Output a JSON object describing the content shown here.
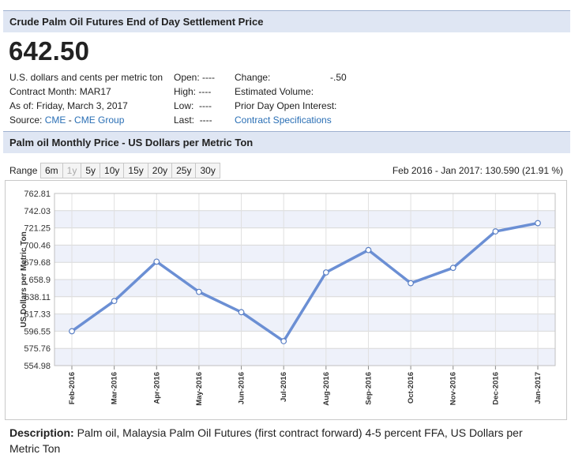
{
  "header": {
    "title": "Crude Palm Oil Futures End of Day Settlement Price"
  },
  "quote": {
    "price": "642.50",
    "unit": "U.S. dollars and cents per metric ton",
    "contract_label": "Contract Month: MAR17",
    "as_of": "As of: Friday, March 3, 2017",
    "source_label": "Source:",
    "source_cme": "CME",
    "source_sep": " - ",
    "source_group": "CME Group",
    "open_label": "Open:",
    "open_value": "----",
    "high_label": "High:",
    "high_value": "----",
    "low_label": "Low:",
    "low_value": "----",
    "last_label": "Last:",
    "last_value": "----",
    "change_label": "Change:",
    "change_value": "-.50",
    "volume_label": "Estimated Volume:",
    "open_interest_label": "Prior Day Open Interest:",
    "specs_link": "Contract Specifications"
  },
  "chart_section": {
    "title": "Palm oil Monthly Price - US Dollars per Metric Ton"
  },
  "range": {
    "label": "Range",
    "buttons": [
      {
        "label": "6m",
        "disabled": false
      },
      {
        "label": "1y",
        "disabled": true
      },
      {
        "label": "5y",
        "disabled": false
      },
      {
        "label": "10y",
        "disabled": false
      },
      {
        "label": "15y",
        "disabled": false
      },
      {
        "label": "20y",
        "disabled": false
      },
      {
        "label": "25y",
        "disabled": false
      },
      {
        "label": "30y",
        "disabled": false
      }
    ],
    "summary": "Feb 2016 - Jan 2017: 130.590 (21.91 %)"
  },
  "chart_data": {
    "type": "line",
    "ylabel": "US Dollars per Metric Ton",
    "ylim": [
      554.98,
      762.81
    ],
    "yticks": [
      "762.81",
      "742.03",
      "721.25",
      "700.46",
      "679.68",
      "658.9",
      "638.11",
      "617.33",
      "596.55",
      "575.76",
      "554.98"
    ],
    "categories": [
      "Feb-2016",
      "Mar-2016",
      "Apr-2016",
      "May-2016",
      "Jun-2016",
      "Jul-2016",
      "Aug-2016",
      "Sep-2016",
      "Oct-2016",
      "Nov-2016",
      "Dec-2016",
      "Jan-2017"
    ],
    "series": [
      {
        "values": [
          596.5,
          633.0,
          680.5,
          644.0,
          619.5,
          584.5,
          667.5,
          694.5,
          654.5,
          673.0,
          717.0,
          727.0
        ]
      }
    ],
    "line_color": "#6b8fd4",
    "band_color": "#eef1fa",
    "grid": true,
    "legend": "none"
  },
  "description": {
    "label": "Description:",
    "text": "Palm oil, Malaysia Palm Oil Futures (first contract forward) 4-5 percent FFA, US Dollars per Metric Ton"
  }
}
